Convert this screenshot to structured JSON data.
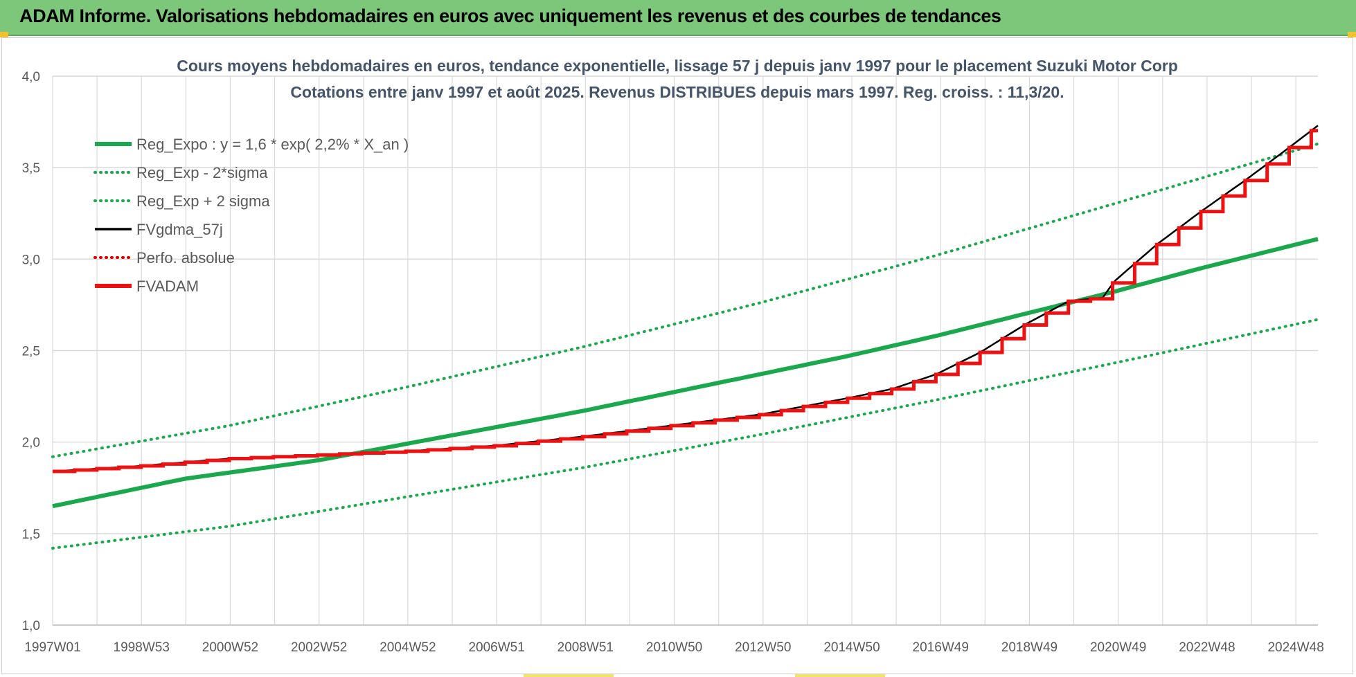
{
  "header": {
    "title": "ADAM Informe. Valorisations hebdomadaires en euros avec uniquement les revenus et des courbes de tendances"
  },
  "colors": {
    "header_bg": "#7cc77a",
    "reg_expo": "#1aa84c",
    "fvgdma": "#000000",
    "perfo": "#e00000",
    "fvadam": "#ee1111",
    "grid": "#d9d9d9"
  },
  "chart_data": {
    "type": "line",
    "title_line1": "Cours moyens hebdomadaires en euros, tendance exponentielle, lissage 57 j depuis janv 1997 pour le placement Suzuki Motor Corp",
    "title_line2": "Cotations entre janv 1997 et août 2025.  Revenus DISTRIBUES depuis mars 1997. Reg. croiss. : 11,3/20.",
    "xlabel": "",
    "ylabel": "",
    "ylim": [
      1.0,
      4.0
    ],
    "x_range_years": [
      1997.0,
      2025.65
    ],
    "y_ticks": [
      "1,0",
      "1,5",
      "2,0",
      "2,5",
      "3,0",
      "3,5",
      "4,0"
    ],
    "x_tick_labels": [
      "1997W01",
      "1998W53",
      "2000W52",
      "2002W52",
      "2004W52",
      "2006W51",
      "2008W51",
      "2010W50",
      "2012W50",
      "2014W50",
      "2016W49",
      "2018W49",
      "2020W49",
      "2022W48",
      "2024W48"
    ],
    "grid": true,
    "legend_position": "top-left",
    "legend": [
      {
        "key": "reg_expo",
        "label": "Reg_Expo : y = 1,6 * exp( 2,2% *  X_an )",
        "style": "solid-thick",
        "color": "#1aa84c"
      },
      {
        "key": "reg_minus",
        "label": "Reg_Exp - 2*sigma",
        "style": "dotted",
        "color": "#1aa84c"
      },
      {
        "key": "reg_plus",
        "label": "Reg_Exp + 2 sigma",
        "style": "dotted",
        "color": "#1aa84c"
      },
      {
        "key": "fvgdma",
        "label": "FVgdma_57j",
        "style": "solid",
        "color": "#000000"
      },
      {
        "key": "perfo",
        "label": "Perfo. absolue",
        "style": "dotted",
        "color": "#e00000"
      },
      {
        "key": "fvadam",
        "label": "FVADAM",
        "style": "solid-thick",
        "color": "#ee1111"
      }
    ],
    "series": [
      {
        "key": "reg_expo",
        "x": [
          1997,
          2000,
          2003,
          2005,
          2007,
          2009,
          2011,
          2013,
          2015,
          2017,
          2019,
          2021,
          2023,
          2025.65
        ],
        "y": [
          1.65,
          1.8,
          1.9,
          1.99,
          2.08,
          2.17,
          2.27,
          2.37,
          2.47,
          2.58,
          2.7,
          2.82,
          2.95,
          3.11
        ]
      },
      {
        "key": "reg_minus",
        "x": [
          1997,
          2001,
          2005,
          2009,
          2013,
          2017,
          2021,
          2025.65
        ],
        "y": [
          1.42,
          1.54,
          1.7,
          1.86,
          2.04,
          2.23,
          2.43,
          2.67
        ]
      },
      {
        "key": "reg_plus",
        "x": [
          1997,
          2001,
          2005,
          2009,
          2013,
          2017,
          2021,
          2025.65
        ],
        "y": [
          1.92,
          2.09,
          2.3,
          2.52,
          2.76,
          3.02,
          3.3,
          3.63
        ]
      },
      {
        "key": "fvadam",
        "x": [
          1997,
          1999,
          2001,
          2003,
          2005,
          2007,
          2009,
          2011,
          2013,
          2015,
          2016,
          2017,
          2018,
          2019,
          2020,
          2020.8,
          2021,
          2022,
          2023,
          2024,
          2025.0,
          2025.65
        ],
        "y": [
          1.84,
          1.87,
          1.91,
          1.93,
          1.95,
          1.98,
          2.03,
          2.09,
          2.15,
          2.24,
          2.29,
          2.37,
          2.49,
          2.64,
          2.77,
          2.79,
          2.87,
          3.08,
          3.26,
          3.43,
          3.61,
          3.73
        ]
      }
    ]
  }
}
